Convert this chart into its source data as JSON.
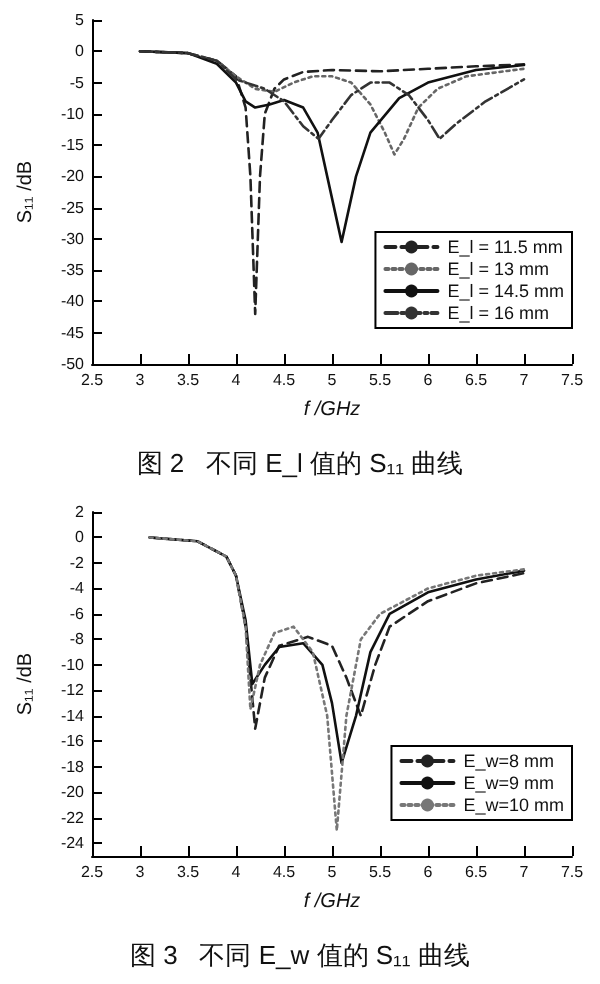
{
  "chart_data": [
    {
      "type": "line",
      "xlabel": "f /GHz",
      "ylabel": "S₁₁ /dB",
      "annotations": [
        "图 2   不同 E_l 值的 S₁₁ 曲线"
      ],
      "xlim": [
        2.5,
        7.5
      ],
      "xticks": [
        2.5,
        3.0,
        3.5,
        4.0,
        4.5,
        5.0,
        5.5,
        6.0,
        6.5,
        7.0,
        7.5
      ],
      "ylim": [
        -50,
        5
      ],
      "yticks": [
        5,
        0,
        -5,
        -10,
        -15,
        -20,
        -25,
        -30,
        -35,
        -40,
        -45,
        -50
      ],
      "grid": false,
      "legend": "bottom right",
      "marker": "none",
      "series": [
        {
          "name": "E_l = 11.5 mm",
          "color": "#222222",
          "line_style": "dashed",
          "x": [
            3.0,
            3.5,
            3.8,
            4.0,
            4.1,
            4.15,
            4.2,
            4.25,
            4.3,
            4.4,
            4.5,
            4.7,
            5.0,
            5.5,
            6.0,
            6.5,
            7.0
          ],
          "values": [
            0,
            -0.3,
            -1.5,
            -4,
            -9,
            -20,
            -42,
            -20,
            -10,
            -6,
            -4.5,
            -3.3,
            -3,
            -3.2,
            -2.8,
            -2.4,
            -2.1
          ]
        },
        {
          "name": "E_l = 13 mm",
          "color": "#666666",
          "line_style": "dotted",
          "x": [
            3.0,
            3.5,
            3.8,
            4.0,
            4.2,
            4.4,
            4.6,
            4.8,
            5.0,
            5.2,
            5.4,
            5.55,
            5.65,
            5.75,
            5.9,
            6.1,
            6.4,
            7.0
          ],
          "values": [
            0,
            -0.3,
            -1.5,
            -4,
            -6,
            -6.5,
            -5,
            -4,
            -4,
            -5,
            -8.5,
            -13,
            -16.5,
            -14,
            -9,
            -6,
            -4,
            -2.8
          ]
        },
        {
          "name": "E_l = 14.5 mm",
          "color": "#111111",
          "line_style": "solid",
          "x": [
            3.0,
            3.5,
            3.8,
            4.0,
            4.1,
            4.2,
            4.35,
            4.5,
            4.7,
            4.85,
            4.95,
            5.05,
            5.1,
            5.15,
            5.25,
            5.4,
            5.7,
            6.0,
            6.5,
            7.0
          ],
          "values": [
            0,
            -0.3,
            -2,
            -5,
            -8,
            -9,
            -8.5,
            -7.8,
            -9,
            -13,
            -20,
            -27,
            -30.5,
            -27,
            -20,
            -13,
            -7.5,
            -5,
            -3,
            -2.2
          ]
        },
        {
          "name": "E_l = 16 mm",
          "color": "#333333",
          "line_style": "dashdot",
          "x": [
            3.0,
            3.5,
            3.8,
            4.0,
            4.3,
            4.5,
            4.7,
            4.86,
            5.0,
            5.2,
            5.4,
            5.6,
            5.8,
            6.0,
            6.12,
            6.3,
            6.6,
            7.0
          ],
          "values": [
            0,
            -0.3,
            -1.5,
            -4.5,
            -6,
            -8,
            -12,
            -14,
            -11,
            -7,
            -5,
            -5,
            -7,
            -11,
            -14,
            -11.5,
            -8,
            -4.5
          ]
        }
      ]
    },
    {
      "type": "line",
      "xlabel": "f /GHz",
      "ylabel": "S₁₁ /dB",
      "annotations": [
        "图 3   不同 E_w 值的 S₁₁ 曲线"
      ],
      "xlim": [
        2.5,
        7.5
      ],
      "xticks": [
        2.5,
        3.0,
        3.5,
        4.0,
        4.5,
        5.0,
        5.5,
        6.0,
        6.5,
        7.0,
        7.5
      ],
      "ylim": [
        -25,
        2
      ],
      "yticks": [
        2,
        0,
        -2,
        -4,
        -6,
        -8,
        -10,
        -12,
        -14,
        -16,
        -18,
        -20,
        -22,
        -24
      ],
      "grid": false,
      "legend": "bottom right",
      "marker": "none",
      "series": [
        {
          "name": "E_w=8 mm",
          "color": "#222222",
          "line_style": "dashed",
          "x": [
            3.1,
            3.6,
            3.9,
            4.0,
            4.1,
            4.2,
            4.3,
            4.45,
            4.75,
            5.0,
            5.15,
            5.3,
            5.45,
            5.6,
            6.0,
            6.5,
            7.0
          ],
          "values": [
            0,
            -0.3,
            -1.5,
            -3,
            -7,
            -15,
            -11,
            -8.5,
            -7.8,
            -8.5,
            -11,
            -14,
            -10,
            -7,
            -5,
            -3.6,
            -2.8
          ]
        },
        {
          "name": "E_w=9 mm",
          "color": "#111111",
          "line_style": "solid",
          "x": [
            3.1,
            3.6,
            3.9,
            4.0,
            4.1,
            4.17,
            4.3,
            4.45,
            4.7,
            4.9,
            5.0,
            5.1,
            5.25,
            5.4,
            5.6,
            6.0,
            6.5,
            7.0
          ],
          "values": [
            0,
            -0.3,
            -1.5,
            -3,
            -6.5,
            -11.5,
            -10,
            -8.6,
            -8.3,
            -10,
            -13,
            -17.7,
            -14,
            -9,
            -6,
            -4.3,
            -3.3,
            -2.6
          ]
        },
        {
          "name": "E_w=10 mm",
          "color": "#777777",
          "line_style": "dotted",
          "x": [
            3.1,
            3.6,
            3.9,
            4.0,
            4.1,
            4.15,
            4.25,
            4.4,
            4.6,
            4.8,
            4.95,
            5.05,
            5.15,
            5.3,
            5.5,
            6.0,
            6.5,
            7.0
          ],
          "values": [
            0,
            -0.3,
            -1.5,
            -3,
            -7,
            -13.5,
            -10,
            -7.5,
            -7,
            -9,
            -14,
            -23,
            -14,
            -8,
            -6,
            -4,
            -3,
            -2.5
          ]
        }
      ]
    }
  ]
}
